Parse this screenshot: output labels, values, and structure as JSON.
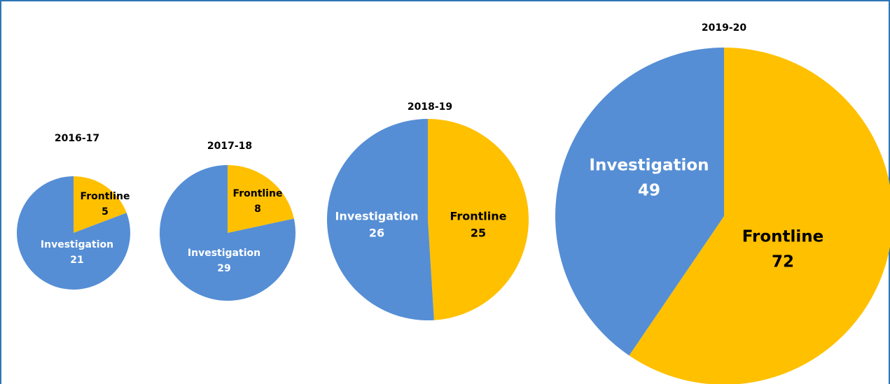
{
  "chart_data": [
    {
      "type": "pie",
      "title": "2016-17",
      "categories": [
        "Frontline",
        "Investigation"
      ],
      "values": [
        5,
        21
      ],
      "colors": [
        "#ffc000",
        "#558ed5"
      ]
    },
    {
      "type": "pie",
      "title": "2017-18",
      "categories": [
        "Frontline",
        "Investigation"
      ],
      "values": [
        8,
        29
      ],
      "colors": [
        "#ffc000",
        "#558ed5"
      ]
    },
    {
      "type": "pie",
      "title": "2018-19",
      "categories": [
        "Frontline",
        "Investigation"
      ],
      "values": [
        25,
        26
      ],
      "colors": [
        "#ffc000",
        "#558ed5"
      ]
    },
    {
      "type": "pie",
      "title": "2019-20",
      "categories": [
        "Frontline",
        "Investigation"
      ],
      "values": [
        72,
        49
      ],
      "colors": [
        "#ffc000",
        "#558ed5"
      ]
    }
  ]
}
